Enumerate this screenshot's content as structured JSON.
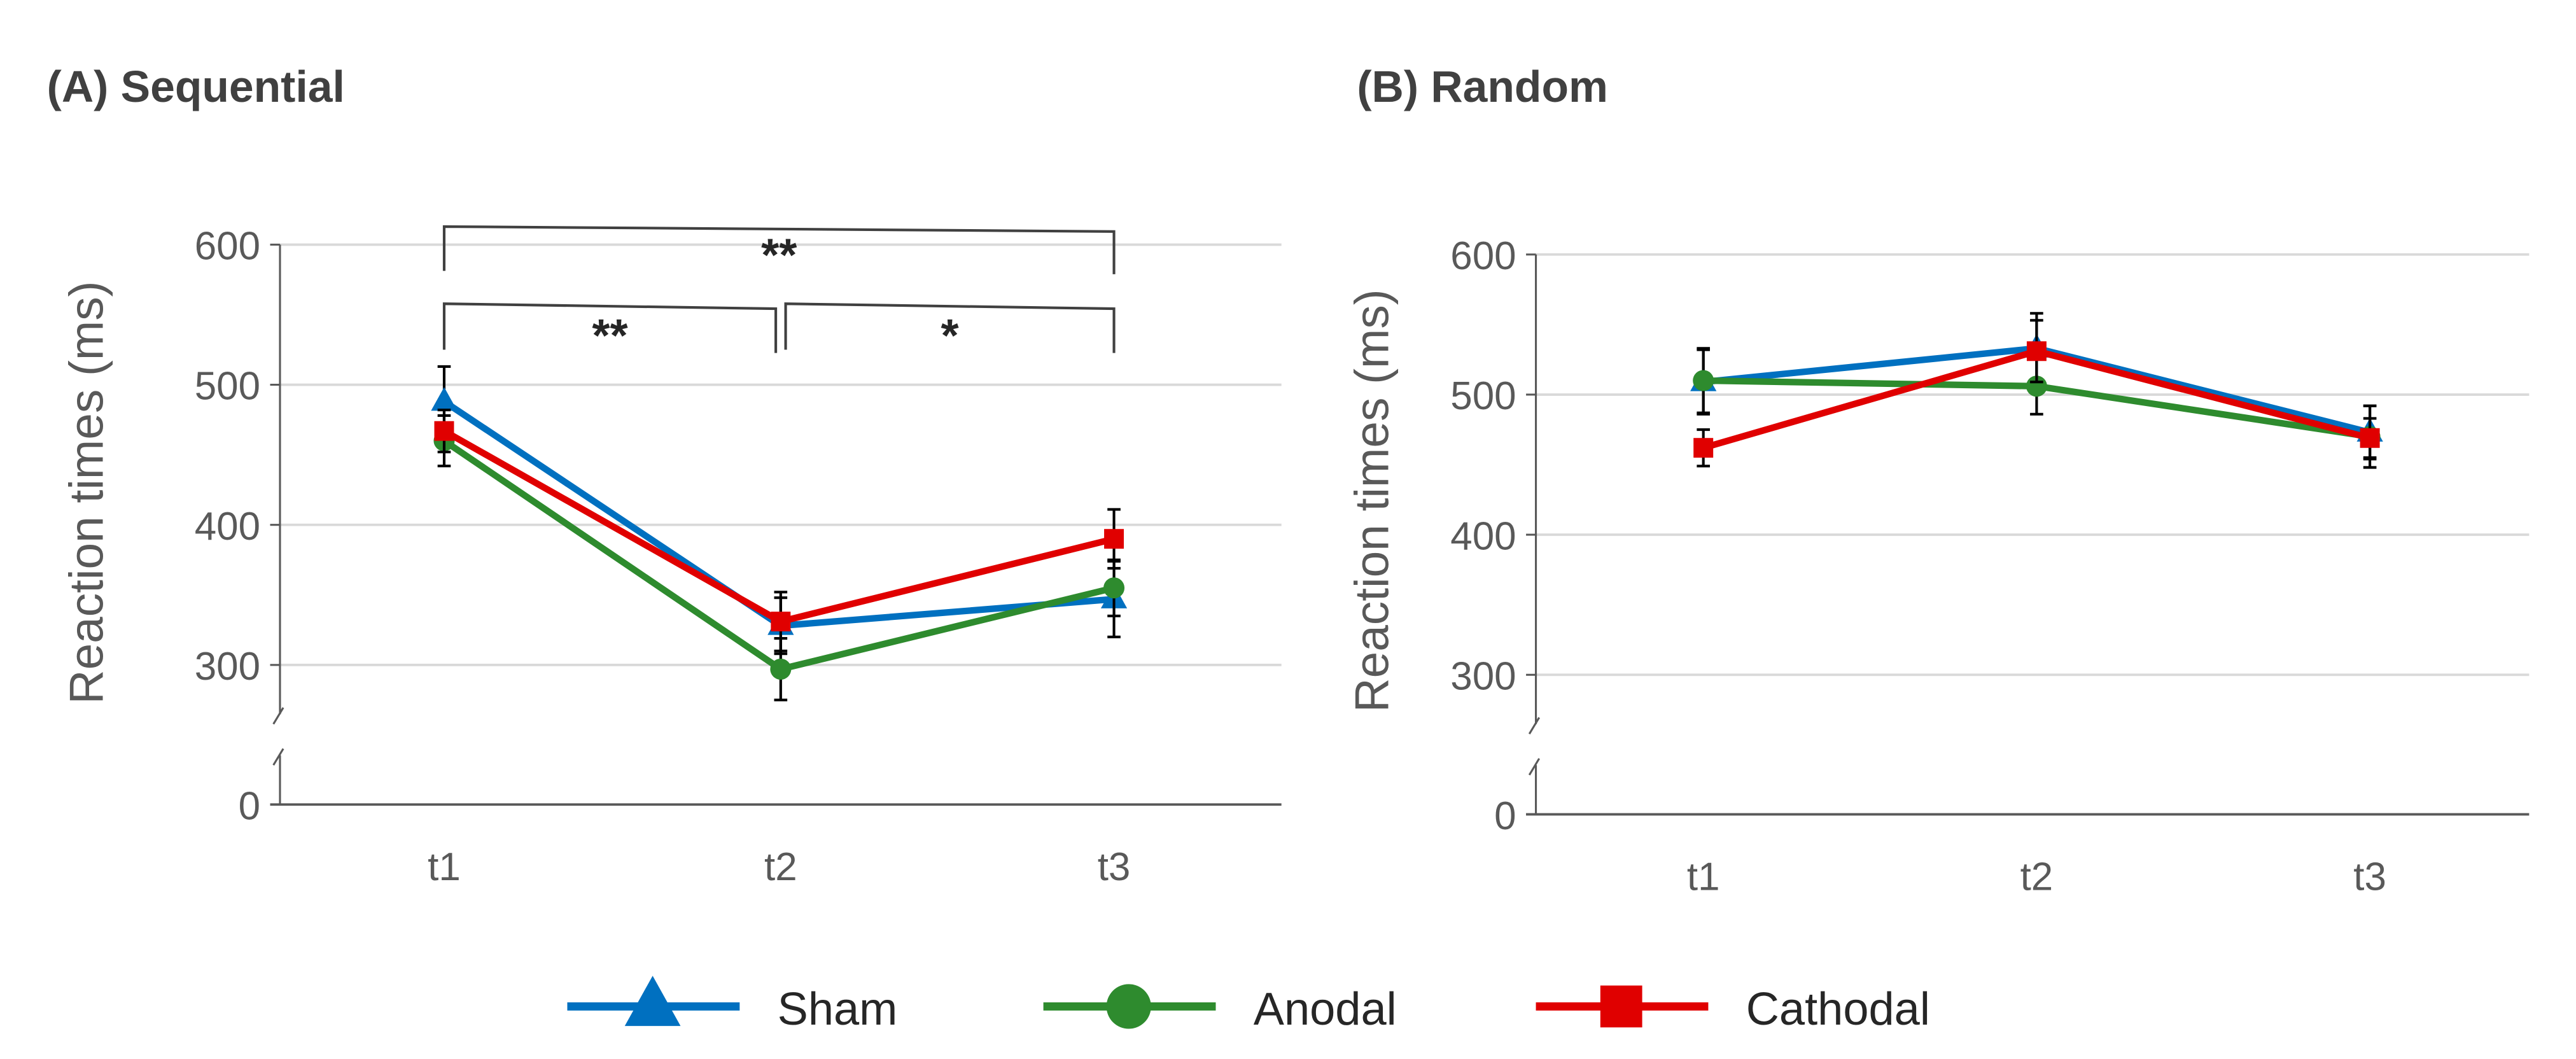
{
  "legend": [
    {
      "name": "Sham",
      "color": "#0070C0",
      "marker": "triangle"
    },
    {
      "name": "Anodal",
      "color": "#2E8B2E",
      "marker": "circle"
    },
    {
      "name": "Cathodal",
      "color": "#E00000",
      "marker": "square"
    }
  ],
  "chart_data": [
    {
      "type": "line",
      "title": "(A) Sequential",
      "ylabel": "Reaction times (ms)",
      "xlabel": "",
      "categories": [
        "t1",
        "t2",
        "t3"
      ],
      "yticks": [
        "0",
        "300",
        "400",
        "500",
        "600"
      ],
      "ylim": [
        0,
        600
      ],
      "axis_break": [
        0,
        300
      ],
      "grid": true,
      "series": [
        {
          "name": "Sham",
          "values": [
            488,
            328,
            347
          ],
          "errors": [
            25,
            20,
            27
          ]
        },
        {
          "name": "Anodal",
          "values": [
            460,
            297,
            355
          ],
          "errors": [
            18,
            22,
            20
          ]
        },
        {
          "name": "Cathodal",
          "values": [
            467,
            331,
            390
          ],
          "errors": [
            15,
            21,
            21
          ]
        }
      ],
      "significance": [
        {
          "from": "t1",
          "to": "t3",
          "label": "**"
        },
        {
          "from": "t1",
          "to": "t2",
          "label": "**"
        },
        {
          "from": "t2",
          "to": "t3",
          "label": "*"
        }
      ]
    },
    {
      "type": "line",
      "title": "(B) Random",
      "ylabel": "Reaction times (ms)",
      "xlabel": "",
      "categories": [
        "t1",
        "t2",
        "t3"
      ],
      "yticks": [
        "0",
        "300",
        "400",
        "500",
        "600"
      ],
      "ylim": [
        0,
        600
      ],
      "axis_break": [
        0,
        300
      ],
      "grid": true,
      "series": [
        {
          "name": "Sham",
          "values": [
            509,
            533,
            473
          ],
          "errors": [
            23,
            25,
            19
          ]
        },
        {
          "name": "Anodal",
          "values": [
            510,
            506,
            470
          ],
          "errors": [
            23,
            20,
            22
          ]
        },
        {
          "name": "Cathodal",
          "values": [
            462,
            531,
            469
          ],
          "errors": [
            13,
            22,
            14
          ]
        }
      ],
      "significance": []
    }
  ]
}
